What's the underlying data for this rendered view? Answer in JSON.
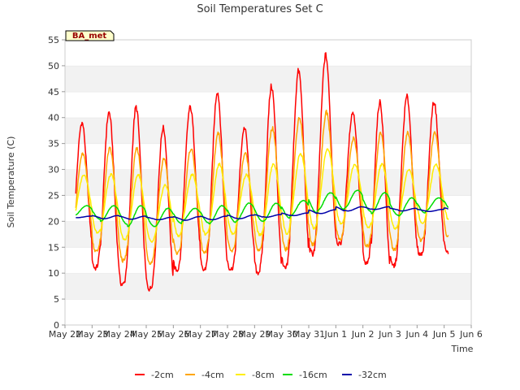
{
  "chart_data": {
    "type": "line",
    "title": "Soil Temperatures Set C",
    "xlabel": "Time",
    "ylabel": "Soil Temperature (C)",
    "station_label": "BA_met",
    "ylim": [
      0,
      55
    ],
    "y_ticks": [
      0,
      5,
      10,
      15,
      20,
      25,
      30,
      35,
      40,
      45,
      50,
      55
    ],
    "x_tick_labels": [
      "May 22",
      "May 23",
      "May 24",
      "May 25",
      "May 26",
      "May 27",
      "May 28",
      "May 29",
      "May 30",
      "May 31",
      "Jun 1",
      "Jun 2",
      "Jun 3",
      "Jun 4",
      "Jun 5",
      "Jun 6"
    ],
    "x_range_days": [
      0,
      15
    ],
    "grid": "horizontal bands",
    "legend_position": "bottom",
    "daily_extremes_note": "Daily minima and maxima per series, estimated from the figure",
    "series": [
      {
        "name": "-2cm",
        "color": "#ff0000",
        "min": [
          14,
          9,
          7,
          7,
          13,
          9,
          12,
          9,
          12,
          15,
          16,
          9,
          13,
          14,
          14
        ],
        "max": [
          39,
          41,
          42,
          38,
          42,
          45,
          38,
          46,
          49,
          52,
          41,
          43,
          44,
          43,
          43
        ]
      },
      {
        "name": "-4cm",
        "color": "#ffa500",
        "min": [
          16,
          13,
          12,
          12,
          15,
          13,
          15,
          14,
          15,
          16,
          17,
          14,
          15,
          17,
          17
        ],
        "max": [
          33,
          34,
          34,
          32,
          34,
          37,
          33,
          38,
          40,
          41,
          36,
          37,
          37,
          37,
          36
        ]
      },
      {
        "name": "-8cm",
        "color": "#ffee00",
        "min": [
          19,
          17,
          16,
          16,
          18,
          17,
          18,
          17,
          18,
          19,
          20,
          18,
          19,
          20,
          20
        ],
        "max": [
          29,
          29,
          29,
          27,
          29,
          31,
          29,
          31,
          33,
          34,
          31,
          31,
          30,
          31,
          31
        ]
      },
      {
        "name": "-16cm",
        "color": "#00dd00",
        "min": [
          21,
          20,
          19,
          19,
          20,
          19.5,
          20,
          20,
          21,
          22,
          22.5,
          21.5,
          21,
          22,
          22
        ],
        "max": [
          23,
          23,
          23,
          22.5,
          22.5,
          23,
          23.5,
          23.5,
          24,
          25.5,
          26,
          25.5,
          24.5,
          24.5,
          25
        ]
      },
      {
        "name": "-32cm",
        "color": "#0000aa",
        "min": [
          20.7,
          20.5,
          20.4,
          20.3,
          20.2,
          20.3,
          20.5,
          20.8,
          21.1,
          21.5,
          22.0,
          22.3,
          22.0,
          21.9,
          22.0
        ],
        "max": [
          21.0,
          21.1,
          21.0,
          20.8,
          20.9,
          21.0,
          21.2,
          21.3,
          21.6,
          22.2,
          22.8,
          22.8,
          22.5,
          22.3,
          22.6
        ]
      }
    ]
  }
}
